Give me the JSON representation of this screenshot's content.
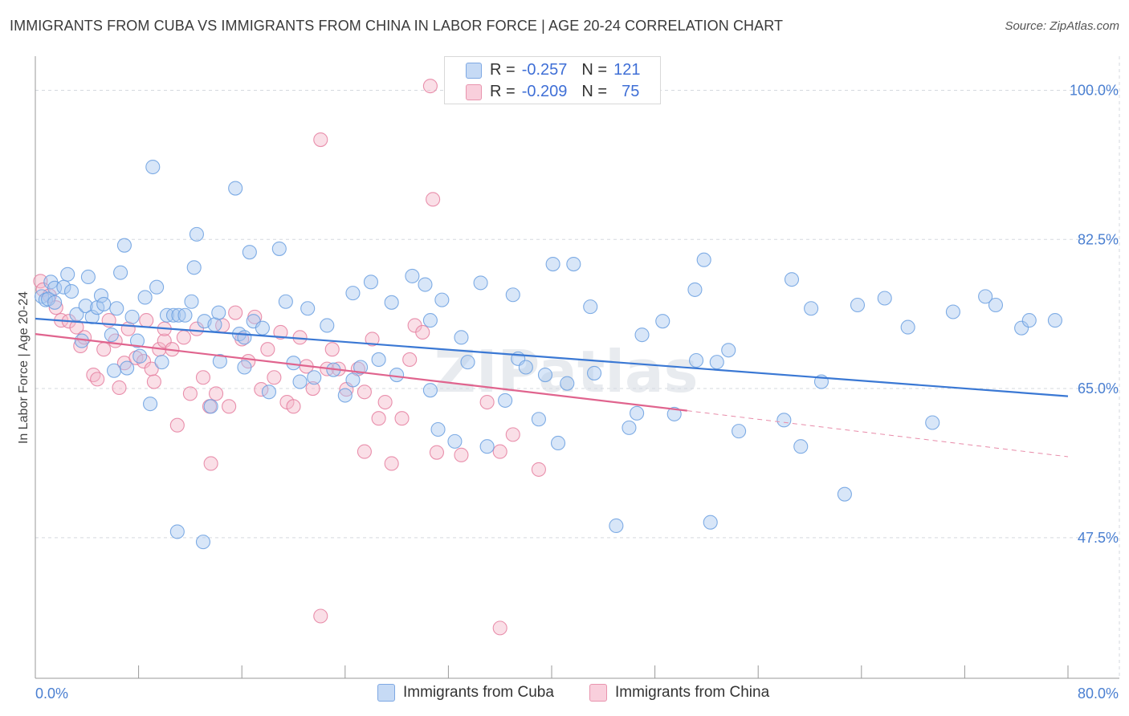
{
  "header": {
    "title": "IMMIGRANTS FROM CUBA VS IMMIGRANTS FROM CHINA IN LABOR FORCE | AGE 20-24 CORRELATION CHART",
    "source": "Source: ZipAtlas.com"
  },
  "watermark": "ZIPatlas",
  "legend_top": {
    "rows": [
      {
        "r_label": "R =",
        "r_value": "-0.257",
        "n_label": "N =",
        "n_value": "121",
        "color": "#a9c8f0"
      },
      {
        "r_label": "R =",
        "r_value": "-0.209",
        "n_label": "N =",
        "n_value": "75",
        "color": "#f5b7c9"
      }
    ]
  },
  "legend_bottom": {
    "items": [
      {
        "label": "Immigrants from Cuba",
        "color": "#a9c8f0"
      },
      {
        "label": "Immigrants from China",
        "color": "#f5b7c9"
      }
    ]
  },
  "chart_data": {
    "type": "scatter",
    "title": "IMMIGRANTS FROM CUBA VS IMMIGRANTS FROM CHINA IN LABOR FORCE | AGE 20-24 CORRELATION CHART",
    "xlabel": "",
    "ylabel": "In Labor Force | Age 20-24",
    "xlim": [
      0,
      80
    ],
    "ylim": [
      31,
      104
    ],
    "x_tick_labels": [
      "0.0%",
      "80.0%"
    ],
    "y_ticks": [
      47.5,
      65.0,
      82.5,
      100.0
    ],
    "y_tick_labels": [
      "47.5%",
      "65.0%",
      "82.5%",
      "100.0%"
    ],
    "grid": true,
    "legend_placement": "top-center",
    "series": [
      {
        "name": "Immigrants from Cuba",
        "color": "#6a9fe0",
        "fill": "#a9c8f0",
        "trend": {
          "x0": 0,
          "y0": 73.2,
          "x1": 80,
          "y1": 64.1,
          "dashed_from": null
        },
        "points": [
          [
            0.5,
            75.8
          ],
          [
            0.8,
            75.4
          ],
          [
            1.0,
            75.5
          ],
          [
            1.2,
            77.5
          ],
          [
            1.5,
            75.1
          ],
          [
            1.5,
            76.8
          ],
          [
            2.2,
            76.9
          ],
          [
            2.5,
            78.4
          ],
          [
            2.8,
            76.4
          ],
          [
            3.2,
            73.7
          ],
          [
            3.6,
            70.6
          ],
          [
            3.9,
            74.7
          ],
          [
            4.1,
            78.1
          ],
          [
            4.4,
            73.4
          ],
          [
            4.8,
            74.5
          ],
          [
            5.1,
            75.9
          ],
          [
            5.3,
            74.9
          ],
          [
            5.9,
            71.3
          ],
          [
            6.1,
            67.1
          ],
          [
            6.3,
            74.4
          ],
          [
            6.6,
            78.6
          ],
          [
            6.9,
            81.8
          ],
          [
            7.1,
            67.4
          ],
          [
            7.5,
            73.4
          ],
          [
            7.9,
            70.6
          ],
          [
            8.1,
            68.8
          ],
          [
            8.5,
            75.7
          ],
          [
            8.9,
            63.2
          ],
          [
            9.4,
            76.9
          ],
          [
            9.8,
            68.1
          ],
          [
            10.2,
            73.6
          ],
          [
            10.7,
            73.6
          ],
          [
            11.1,
            73.6
          ],
          [
            11.6,
            73.6
          ],
          [
            12.1,
            75.2
          ],
          [
            12.3,
            79.2
          ],
          [
            12.5,
            83.1
          ],
          [
            13.1,
            72.9
          ],
          [
            13.6,
            62.9
          ],
          [
            13.9,
            72.5
          ],
          [
            14.2,
            73.9
          ],
          [
            14.3,
            68.2
          ],
          [
            15.5,
            88.5
          ],
          [
            15.8,
            71.4
          ],
          [
            16.2,
            67.5
          ],
          [
            16.6,
            81.0
          ],
          [
            16.9,
            72.9
          ],
          [
            17.6,
            72.1
          ],
          [
            18.1,
            64.6
          ],
          [
            18.9,
            81.4
          ],
          [
            19.4,
            75.2
          ],
          [
            20.0,
            68.0
          ],
          [
            20.5,
            65.8
          ],
          [
            21.1,
            74.4
          ],
          [
            21.6,
            66.3
          ],
          [
            22.6,
            72.4
          ],
          [
            23.1,
            67.2
          ],
          [
            24.0,
            64.2
          ],
          [
            24.6,
            76.2
          ],
          [
            25.2,
            67.5
          ],
          [
            26.0,
            77.5
          ],
          [
            26.6,
            68.4
          ],
          [
            27.6,
            75.1
          ],
          [
            28.0,
            66.6
          ],
          [
            29.2,
            78.2
          ],
          [
            30.2,
            77.2
          ],
          [
            30.6,
            64.8
          ],
          [
            31.2,
            60.2
          ],
          [
            31.5,
            75.4
          ],
          [
            32.5,
            58.8
          ],
          [
            33.0,
            71.0
          ],
          [
            33.5,
            68.1
          ],
          [
            34.5,
            77.4
          ],
          [
            35.0,
            58.2
          ],
          [
            36.4,
            63.6
          ],
          [
            37.0,
            76.0
          ],
          [
            37.4,
            68.5
          ],
          [
            38.0,
            67.5
          ],
          [
            39.0,
            61.4
          ],
          [
            39.5,
            66.6
          ],
          [
            40.1,
            79.6
          ],
          [
            40.5,
            58.6
          ],
          [
            41.2,
            65.6
          ],
          [
            41.7,
            79.6
          ],
          [
            43.0,
            74.6
          ],
          [
            43.3,
            66.8
          ],
          [
            45.0,
            48.9
          ],
          [
            46.0,
            60.4
          ],
          [
            46.6,
            62.1
          ],
          [
            47.0,
            71.3
          ],
          [
            48.6,
            72.9
          ],
          [
            49.5,
            62.0
          ],
          [
            51.1,
            76.6
          ],
          [
            51.2,
            68.3
          ],
          [
            51.8,
            80.1
          ],
          [
            52.3,
            49.3
          ],
          [
            52.8,
            68.1
          ],
          [
            53.7,
            69.5
          ],
          [
            54.5,
            60.0
          ],
          [
            58.0,
            61.3
          ],
          [
            58.6,
            77.8
          ],
          [
            59.3,
            58.2
          ],
          [
            60.1,
            74.4
          ],
          [
            60.9,
            65.8
          ],
          [
            62.7,
            52.6
          ],
          [
            63.7,
            74.8
          ],
          [
            65.8,
            75.6
          ],
          [
            67.6,
            72.2
          ],
          [
            69.5,
            61.0
          ],
          [
            71.1,
            74.0
          ],
          [
            73.6,
            75.8
          ],
          [
            74.4,
            74.8
          ],
          [
            76.4,
            72.1
          ],
          [
            77.0,
            73.0
          ],
          [
            79.0,
            73.0
          ],
          [
            9.1,
            91.0
          ],
          [
            11.0,
            48.2
          ],
          [
            13.0,
            47.0
          ],
          [
            16.2,
            71.0
          ],
          [
            24.6,
            66.0
          ],
          [
            30.6,
            73.0
          ]
        ]
      },
      {
        "name": "Immigrants from China",
        "color": "#e57e9f",
        "fill": "#f5b7c9",
        "trend": {
          "x0": 0,
          "y0": 71.4,
          "x1": 50.5,
          "y1": 62.4,
          "dashed_from": 50.5,
          "dashed_to": 80,
          "dashed_y1": 57.0
        },
        "points": [
          [
            0.4,
            77.6
          ],
          [
            0.6,
            76.6
          ],
          [
            1.1,
            75.9
          ],
          [
            1.6,
            74.5
          ],
          [
            2.0,
            73.0
          ],
          [
            2.6,
            72.9
          ],
          [
            3.2,
            72.2
          ],
          [
            3.5,
            70.0
          ],
          [
            3.8,
            71.0
          ],
          [
            4.5,
            66.6
          ],
          [
            4.8,
            66.1
          ],
          [
            5.3,
            69.6
          ],
          [
            5.7,
            73.0
          ],
          [
            6.2,
            70.6
          ],
          [
            6.5,
            65.1
          ],
          [
            6.9,
            68.0
          ],
          [
            7.2,
            72.0
          ],
          [
            7.8,
            68.6
          ],
          [
            8.4,
            68.2
          ],
          [
            8.6,
            73.0
          ],
          [
            9.0,
            67.3
          ],
          [
            9.2,
            65.8
          ],
          [
            9.6,
            69.6
          ],
          [
            10.0,
            70.6
          ],
          [
            10.6,
            69.6
          ],
          [
            11.0,
            60.7
          ],
          [
            11.5,
            71.0
          ],
          [
            12.0,
            64.4
          ],
          [
            12.5,
            72.0
          ],
          [
            13.0,
            66.3
          ],
          [
            13.5,
            62.9
          ],
          [
            14.0,
            64.4
          ],
          [
            14.5,
            72.4
          ],
          [
            15.0,
            62.9
          ],
          [
            15.5,
            73.9
          ],
          [
            16.0,
            70.8
          ],
          [
            16.5,
            68.2
          ],
          [
            17.0,
            73.4
          ],
          [
            17.5,
            64.9
          ],
          [
            18.0,
            69.6
          ],
          [
            18.5,
            66.3
          ],
          [
            19.0,
            71.6
          ],
          [
            19.5,
            63.4
          ],
          [
            20.0,
            62.9
          ],
          [
            20.5,
            71.0
          ],
          [
            21.0,
            67.6
          ],
          [
            21.5,
            65.0
          ],
          [
            22.1,
            94.2
          ],
          [
            22.6,
            67.3
          ],
          [
            23.0,
            69.6
          ],
          [
            23.5,
            67.3
          ],
          [
            24.1,
            64.9
          ],
          [
            25.0,
            67.3
          ],
          [
            25.5,
            64.6
          ],
          [
            26.1,
            70.8
          ],
          [
            26.6,
            61.5
          ],
          [
            27.1,
            63.4
          ],
          [
            27.6,
            56.2
          ],
          [
            28.4,
            61.5
          ],
          [
            29.0,
            68.4
          ],
          [
            29.4,
            72.4
          ],
          [
            30.0,
            71.6
          ],
          [
            30.6,
            100.5
          ],
          [
            30.8,
            87.2
          ],
          [
            31.1,
            57.5
          ],
          [
            33.0,
            57.2
          ],
          [
            35.0,
            63.4
          ],
          [
            36.0,
            57.6
          ],
          [
            37.0,
            59.6
          ],
          [
            39.0,
            55.5
          ],
          [
            13.6,
            56.2
          ],
          [
            22.1,
            38.3
          ],
          [
            36.0,
            36.9
          ],
          [
            25.5,
            57.6
          ],
          [
            10.0,
            72.0
          ]
        ]
      }
    ]
  }
}
